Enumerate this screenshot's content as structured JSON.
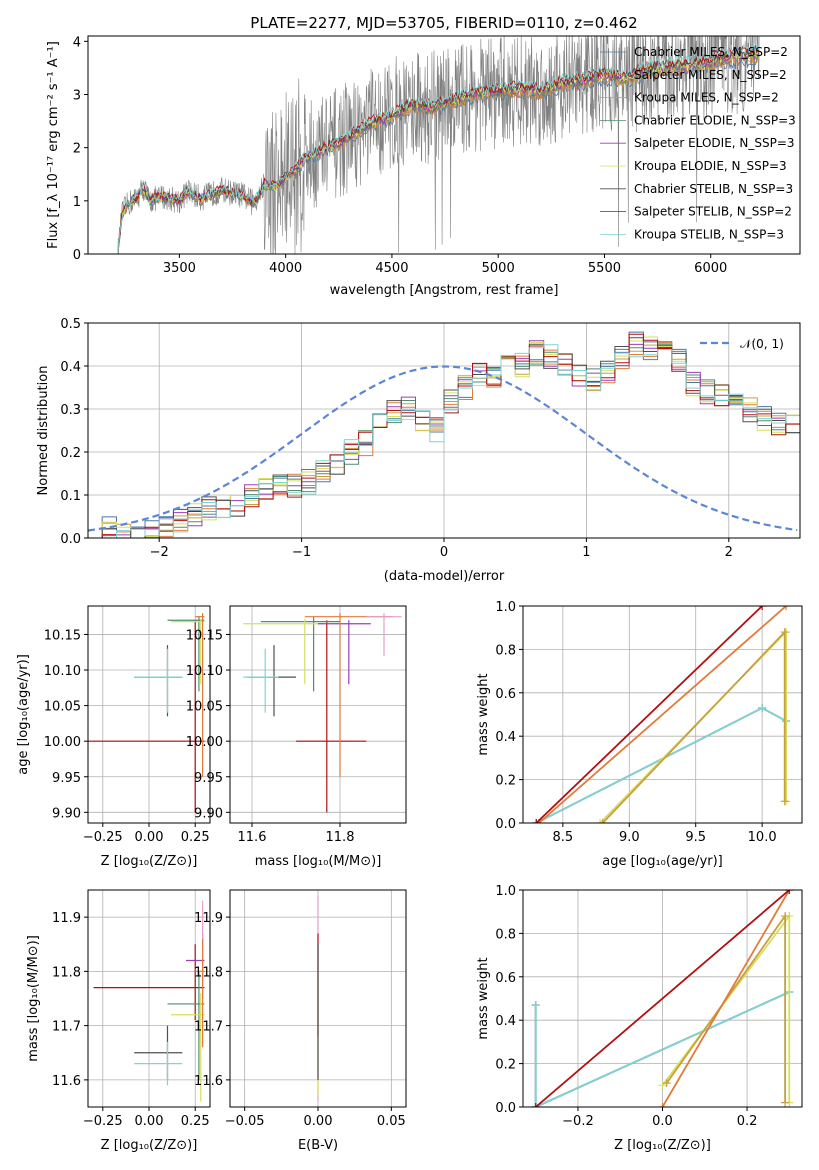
{
  "chart_data": [
    {
      "id": "spectrum",
      "type": "line",
      "title": "PLATE=2277, MJD=53705, FIBERID=0110, z=0.462",
      "xlabel": "wavelength [Angstrom, rest frame]",
      "ylabel": "Flux [f_λ 10⁻¹⁷ erg cm⁻² s⁻¹ A⁻¹]",
      "xlim": [
        3070,
        6420
      ],
      "ylim": [
        0,
        4.1
      ],
      "xticks": [
        "3500",
        "4000",
        "4500",
        "5000",
        "5500",
        "6000"
      ],
      "yticks": [
        "0",
        "1",
        "2",
        "3",
        "4"
      ],
      "grid": false,
      "legend_position": "top-right",
      "data_color": "#808080",
      "data_range": [
        3210,
        6230
      ],
      "legend": [
        {
          "label": "Chabrier MILES, N_SSP=2",
          "color": "#4878a8"
        },
        {
          "label": "Salpeter MILES, N_SSP=2",
          "color": "#e07b39"
        },
        {
          "label": "Kroupa MILES, N_SSP=2",
          "color": "#c8a040"
        },
        {
          "label": "Chabrier ELODIE, N_SSP=3",
          "color": "#4f8f6f"
        },
        {
          "label": "Salpeter ELODIE, N_SSP=3",
          "color": "#9b3fb5"
        },
        {
          "label": "Kroupa ELODIE, N_SSP=3",
          "color": "#d6e05a"
        },
        {
          "label": "Chabrier STELIB, N_SSP=3",
          "color": "#505050"
        },
        {
          "label": "Salpeter STELIB, N_SSP=2",
          "color": "#b01010"
        },
        {
          "label": "Kroupa STELIB, N_SSP=3",
          "color": "#7fd4d4"
        }
      ],
      "model_shape": [
        [
          3210,
          0
        ],
        [
          3230,
          0.75
        ],
        [
          3260,
          0.95
        ],
        [
          3300,
          1.05
        ],
        [
          3330,
          1.25
        ],
        [
          3360,
          1.0
        ],
        [
          3420,
          1.08
        ],
        [
          3500,
          1.0
        ],
        [
          3540,
          1.18
        ],
        [
          3600,
          1.05
        ],
        [
          3700,
          1.2
        ],
        [
          3800,
          1.1
        ],
        [
          3850,
          0.95
        ],
        [
          3900,
          1.3
        ],
        [
          3950,
          1.25
        ],
        [
          4000,
          1.45
        ],
        [
          4100,
          1.8
        ],
        [
          4200,
          2.0
        ],
        [
          4300,
          2.2
        ],
        [
          4400,
          2.45
        ],
        [
          4500,
          2.6
        ],
        [
          4600,
          2.8
        ],
        [
          4700,
          2.75
        ],
        [
          4800,
          2.9
        ],
        [
          4900,
          3.0
        ],
        [
          5000,
          3.05
        ],
        [
          5100,
          3.1
        ],
        [
          5200,
          3.05
        ],
        [
          5300,
          3.2
        ],
        [
          5400,
          3.25
        ],
        [
          5500,
          3.35
        ],
        [
          5600,
          3.3
        ],
        [
          5700,
          3.45
        ],
        [
          5800,
          3.5
        ],
        [
          5900,
          3.55
        ],
        [
          6000,
          3.6
        ],
        [
          6100,
          3.7
        ],
        [
          6230,
          3.75
        ]
      ]
    },
    {
      "id": "residuals",
      "type": "line",
      "xlabel": "(data-model)/error",
      "ylabel": "Normed distribution",
      "xlim": [
        -2.5,
        2.5
      ],
      "ylim": [
        0,
        0.5
      ],
      "xticks": [
        "−2",
        "−1",
        "0",
        "1",
        "2"
      ],
      "yticks": [
        "0.0",
        "0.1",
        "0.2",
        "0.3",
        "0.4",
        "0.5"
      ],
      "grid": true,
      "legend_position": "top-right",
      "legend": [
        {
          "label": "𝒩(0, 1)",
          "color": "#5b86d6"
        }
      ],
      "hist_bin_width": 0.1,
      "hist_values": [
        0.02,
        0.02,
        0.01,
        0.02,
        0.01,
        0.03,
        0.04,
        0.05,
        0.07,
        0.06,
        0.08,
        0.1,
        0.11,
        0.13,
        0.12,
        0.13,
        0.16,
        0.17,
        0.2,
        0.22,
        0.26,
        0.29,
        0.3,
        0.27,
        0.25,
        0.32,
        0.35,
        0.38,
        0.38,
        0.42,
        0.4,
        0.43,
        0.42,
        0.4,
        0.38,
        0.37,
        0.39,
        0.42,
        0.45,
        0.44,
        0.43,
        0.41,
        0.36,
        0.34,
        0.33,
        0.32,
        0.3,
        0.28,
        0.27,
        0.26
      ]
    },
    {
      "id": "age-vs-Z",
      "type": "scatter",
      "xlabel": "Z [log₁₀(Z/Z⊙)]",
      "ylabel": "age [log₁₀(age/yr)]",
      "xlim": [
        -0.33,
        0.33
      ],
      "ylim": [
        9.885,
        10.19
      ],
      "xticks": [
        "−0.25",
        "0.00",
        "0.25"
      ],
      "yticks": [
        "9.90",
        "9.95",
        "10.00",
        "10.05",
        "10.10",
        "10.15"
      ],
      "grid": true,
      "crosses": [
        {
          "x": 0.1,
          "xe": [
            -0.08,
            0.18
          ],
          "y": 10.09,
          "ye": [
            10.035,
            10.135
          ],
          "color": "#505050"
        },
        {
          "x": 0.1,
          "xe": [
            -0.08,
            0.18
          ],
          "y": 10.09,
          "ye": [
            10.04,
            10.13
          ],
          "color": "#7fd4d4"
        },
        {
          "x": 0.25,
          "xe": [
            -0.33,
            0.3
          ],
          "y": 10.0,
          "ye": [
            9.9,
            10.17
          ],
          "color": "#b01010"
        },
        {
          "x": 0.27,
          "xe": [
            0.1,
            0.3
          ],
          "y": 10.17,
          "ye": [
            10.07,
            10.175
          ],
          "color": "#4f8f6f"
        },
        {
          "x": 0.28,
          "xe": [
            0.12,
            0.3
          ],
          "y": 10.168,
          "ye": [
            10.08,
            10.172
          ],
          "color": "#d6e05a"
        },
        {
          "x": 0.29,
          "xe": [
            0.25,
            0.3
          ],
          "y": 10.175,
          "ye": [
            9.95,
            10.18
          ],
          "color": "#e07b39"
        }
      ]
    },
    {
      "id": "age-vs-mass",
      "type": "scatter",
      "xlabel": "mass [log₁₀(M/M⊙)]",
      "ylabel": "",
      "xlim": [
        11.55,
        11.95
      ],
      "ylim": [
        9.885,
        10.19
      ],
      "xticks": [
        "11.6",
        "11.8"
      ],
      "yticks": [
        "9.90",
        "9.95",
        "10.00",
        "10.05",
        "10.10",
        "10.15"
      ],
      "grid": true,
      "crosses": [
        {
          "x": 11.65,
          "xe": [
            11.59,
            11.7
          ],
          "y": 10.09,
          "ye": [
            10.035,
            10.135
          ],
          "color": "#505050"
        },
        {
          "x": 11.63,
          "xe": [
            11.58,
            11.66
          ],
          "y": 10.09,
          "ye": [
            10.04,
            10.13
          ],
          "color": "#7fd4d4"
        },
        {
          "x": 11.77,
          "xe": [
            11.7,
            11.86
          ],
          "y": 10.0,
          "ye": [
            9.9,
            10.17
          ],
          "color": "#b01010"
        },
        {
          "x": 11.74,
          "xe": [
            11.62,
            11.8
          ],
          "y": 10.168,
          "ye": [
            10.07,
            10.175
          ],
          "color": "#4f8f6f"
        },
        {
          "x": 11.72,
          "xe": [
            11.58,
            11.76
          ],
          "y": 10.165,
          "ye": [
            10.08,
            10.172
          ],
          "color": "#d6e05a"
        },
        {
          "x": 11.82,
          "xe": [
            11.75,
            11.87
          ],
          "y": 10.165,
          "ye": [
            10.08,
            10.17
          ],
          "color": "#9b3fb5"
        },
        {
          "x": 11.8,
          "xe": [
            11.72,
            11.92
          ],
          "y": 10.175,
          "ye": [
            9.95,
            10.18
          ],
          "color": "#e07b39"
        },
        {
          "x": 11.9,
          "xe": [
            11.86,
            11.94
          ],
          "y": 10.175,
          "ye": [
            10.12,
            10.18
          ],
          "color": "#e6a0c8"
        }
      ]
    },
    {
      "id": "mass-weight-vs-age",
      "type": "line",
      "xlabel": "age [log₁₀(age/yr)]",
      "ylabel": "mass weight",
      "xlim": [
        8.2,
        10.3
      ],
      "ylim": [
        0,
        1.0
      ],
      "xticks": [
        "8.5",
        "9.0",
        "9.5",
        "10.0"
      ],
      "yticks": [
        "0.0",
        "0.2",
        "0.4",
        "0.6",
        "0.8",
        "1.0"
      ],
      "grid": true,
      "series": [
        {
          "color": "#505050",
          "points": [
            [
              8.3,
              0.0
            ],
            [
              10.0,
              0.53
            ],
            [
              10.18,
              0.47
            ]
          ]
        },
        {
          "color": "#7fd4d4",
          "points": [
            [
              8.3,
              0.0
            ],
            [
              10.0,
              0.53
            ],
            [
              10.18,
              0.47
            ]
          ]
        },
        {
          "color": "#d6e05a",
          "points": [
            [
              8.78,
              0.0
            ],
            [
              10.18,
              0.88
            ],
            [
              10.18,
              0.1
            ]
          ]
        },
        {
          "color": "#c8a040",
          "points": [
            [
              8.8,
              0.0
            ],
            [
              10.17,
              0.88
            ],
            [
              10.17,
              0.1
            ]
          ]
        },
        {
          "color": "#e07b39",
          "points": [
            [
              8.32,
              0.0
            ],
            [
              10.18,
              1.0
            ]
          ]
        },
        {
          "color": "#b01010",
          "points": [
            [
              8.3,
              0.0
            ],
            [
              10.0,
              1.0
            ]
          ]
        }
      ]
    },
    {
      "id": "mass-vs-Z",
      "type": "scatter",
      "xlabel": "Z [log₁₀(Z/Z⊙)]",
      "ylabel": "mass [log₁₀(M/M⊙)]",
      "xlim": [
        -0.33,
        0.33
      ],
      "ylim": [
        11.55,
        11.95
      ],
      "xticks": [
        "−0.25",
        "0.00",
        "0.25"
      ],
      "yticks": [
        "11.6",
        "11.7",
        "11.8",
        "11.9"
      ],
      "grid": true,
      "crosses": [
        {
          "x": 0.1,
          "xe": [
            -0.08,
            0.18
          ],
          "y": 11.65,
          "ye": [
            11.6,
            11.7
          ],
          "color": "#505050"
        },
        {
          "x": 0.1,
          "xe": [
            -0.08,
            0.18
          ],
          "y": 11.63,
          "ye": [
            11.59,
            11.67
          ],
          "color": "#7fd4d4"
        },
        {
          "x": 0.25,
          "xe": [
            -0.3,
            0.3
          ],
          "y": 11.77,
          "ye": [
            11.71,
            11.85
          ],
          "color": "#b01010"
        },
        {
          "x": 0.27,
          "xe": [
            0.1,
            0.3
          ],
          "y": 11.74,
          "ye": [
            11.6,
            11.8
          ],
          "color": "#4f8f6f"
        },
        {
          "x": 0.28,
          "xe": [
            0.12,
            0.3
          ],
          "y": 11.72,
          "ye": [
            11.56,
            11.76
          ],
          "color": "#d6e05a"
        },
        {
          "x": 0.29,
          "xe": [
            0.2,
            0.3
          ],
          "y": 11.82,
          "ye": [
            11.75,
            11.87
          ],
          "color": "#9b3fb5"
        },
        {
          "x": 0.29,
          "xe": [
            0.25,
            0.3
          ],
          "y": 11.8,
          "ye": [
            11.66,
            11.86
          ],
          "color": "#e07b39"
        },
        {
          "x": 0.29,
          "xe": [
            0.25,
            0.3
          ],
          "y": 11.9,
          "ye": [
            11.86,
            11.93
          ],
          "color": "#e6a0c8"
        }
      ]
    },
    {
      "id": "mass-vs-EBV",
      "type": "scatter",
      "xlabel": "E(B-V)",
      "ylabel": "",
      "xlim": [
        -0.06,
        0.06
      ],
      "ylim": [
        11.55,
        11.95
      ],
      "xticks": [
        "−0.05",
        "0.00",
        "0.05"
      ],
      "yticks": [
        "11.6",
        "11.7",
        "11.8",
        "11.9"
      ],
      "grid": true,
      "crosses": [
        {
          "x": 0.0,
          "xe": [
            0.0,
            0.0
          ],
          "y": 11.8,
          "ye": [
            11.56,
            11.94
          ],
          "color": "#e6a0c8"
        },
        {
          "x": 0.0,
          "xe": [
            0.0,
            0.0
          ],
          "y": 11.77,
          "ye": [
            11.68,
            11.87
          ],
          "color": "#b01010"
        },
        {
          "x": 0.0,
          "xe": [
            0.0,
            0.0
          ],
          "y": 11.72,
          "ye": [
            11.57,
            11.8
          ],
          "color": "#d6e05a"
        },
        {
          "x": 0.0,
          "xe": [
            0.0,
            0.0
          ],
          "y": 11.74,
          "ye": [
            11.6,
            11.85
          ],
          "color": "#505050"
        }
      ]
    },
    {
      "id": "mass-weight-vs-Z",
      "type": "line",
      "xlabel": "Z [log₁₀(Z/Z⊙)]",
      "ylabel": "mass weight",
      "xlim": [
        -0.33,
        0.33
      ],
      "ylim": [
        0,
        1.0
      ],
      "xticks": [
        "−0.2",
        "0.0",
        "0.2"
      ],
      "yticks": [
        "0.0",
        "0.2",
        "0.4",
        "0.6",
        "0.8",
        "1.0"
      ],
      "grid": true,
      "series": [
        {
          "color": "#505050",
          "points": [
            [
              -0.3,
              0.47
            ],
            [
              -0.3,
              0.0
            ],
            [
              0.3,
              0.53
            ]
          ]
        },
        {
          "color": "#7fd4d4",
          "points": [
            [
              -0.3,
              0.47
            ],
            [
              -0.3,
              0.0
            ],
            [
              0.3,
              0.53
            ]
          ]
        },
        {
          "color": "#d6e05a",
          "points": [
            [
              0.0,
              0.1
            ],
            [
              0.3,
              0.88
            ],
            [
              0.3,
              0.02
            ]
          ]
        },
        {
          "color": "#c8a040",
          "points": [
            [
              0.01,
              0.11
            ],
            [
              0.29,
              0.88
            ],
            [
              0.29,
              0.02
            ]
          ]
        },
        {
          "color": "#e07b39",
          "points": [
            [
              0.0,
              0.0
            ],
            [
              0.3,
              1.0
            ]
          ]
        },
        {
          "color": "#b01010",
          "points": [
            [
              -0.3,
              0.0
            ],
            [
              0.3,
              1.0
            ]
          ]
        }
      ]
    }
  ]
}
